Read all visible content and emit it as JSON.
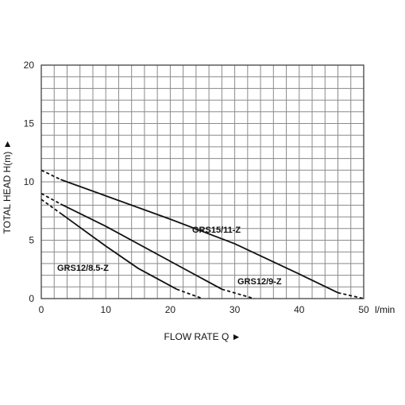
{
  "chart_data": {
    "type": "line",
    "title": "",
    "xlabel": "FLOW RATE Q ►",
    "ylabel": "TOTAL HEAD H(m) ►",
    "x_unit": "l/min",
    "xlim": [
      0,
      50
    ],
    "ylim": [
      0,
      20
    ],
    "x_ticks": [
      0,
      10,
      20,
      30,
      40,
      50
    ],
    "y_ticks": [
      0,
      5,
      10,
      15,
      20
    ],
    "grid": true,
    "series": [
      {
        "name": "GRS15/11-Z",
        "x": [
          0,
          3,
          10,
          20,
          30,
          40,
          46,
          50
        ],
        "y": [
          11,
          10.2,
          8.8,
          6.8,
          4.7,
          2.1,
          0.5,
          0
        ],
        "solid_x_range": [
          3,
          46
        ]
      },
      {
        "name": "GRS12/9-Z",
        "x": [
          0,
          3,
          10,
          20,
          28,
          33
        ],
        "y": [
          9,
          8.1,
          6.2,
          3.2,
          0.8,
          0
        ],
        "solid_x_range": [
          3,
          28
        ]
      },
      {
        "name": "GRS12/8.5-Z",
        "x": [
          0,
          3,
          10,
          15,
          21,
          25
        ],
        "y": [
          8.5,
          7.3,
          4.5,
          2.6,
          0.8,
          0
        ],
        "solid_x_range": [
          3,
          21
        ]
      }
    ]
  }
}
